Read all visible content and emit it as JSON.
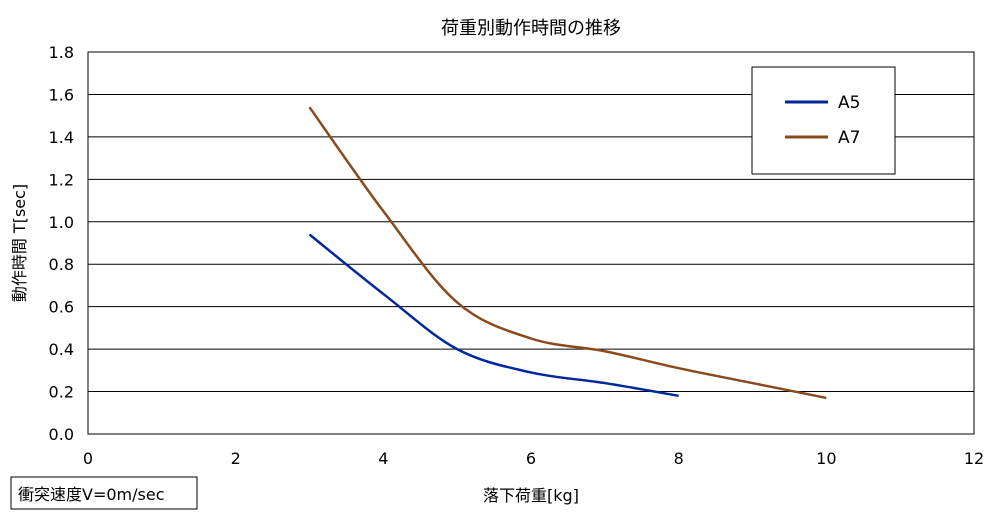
{
  "chart_data": {
    "type": "line",
    "title": "荷重別動作時間の推移",
    "xlabel": "落下荷重[kg]",
    "ylabel": "動作時間 T[sec]",
    "xlim": [
      0,
      12
    ],
    "ylim": [
      0,
      1.8
    ],
    "x_ticks": [
      0,
      2,
      4,
      6,
      8,
      10,
      12
    ],
    "x_tick_labels": [
      "0",
      "2",
      "4",
      "6",
      "8",
      "10",
      "12"
    ],
    "y_ticks": [
      0,
      0.2,
      0.4,
      0.6,
      0.8,
      1.0,
      1.2,
      1.4,
      1.6,
      1.8
    ],
    "y_tick_labels": [
      "0.0",
      "0.2",
      "0.4",
      "0.6",
      "0.8",
      "1.0",
      "1.2",
      "1.4",
      "1.6",
      "1.8"
    ],
    "grid": "horizontal",
    "legend_position": "top-right",
    "series": [
      {
        "name": "A5",
        "color": "#00279b",
        "x": [
          3,
          4,
          5,
          6,
          7,
          8
        ],
        "y": [
          0.94,
          0.66,
          0.4,
          0.29,
          0.24,
          0.18
        ]
      },
      {
        "name": "A7",
        "color": "#8b4a1e",
        "x": [
          3,
          4,
          5,
          6,
          7,
          8,
          9,
          10
        ],
        "y": [
          1.54,
          1.05,
          0.62,
          0.45,
          0.39,
          0.31,
          0.24,
          0.17
        ]
      }
    ],
    "note": "衝突速度V=0m/sec"
  }
}
